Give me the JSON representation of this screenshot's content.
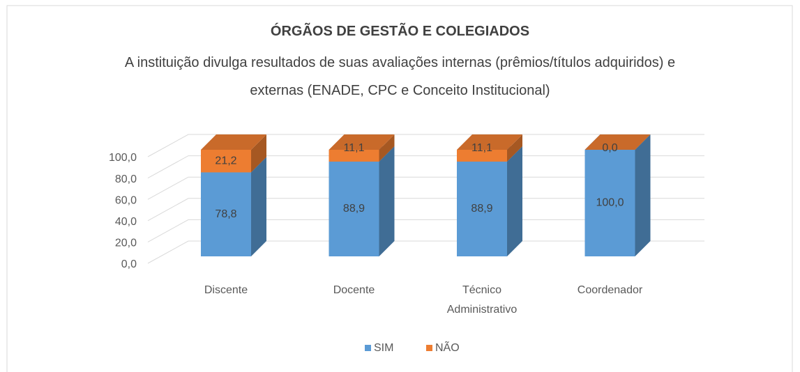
{
  "chart_data": {
    "type": "bar3d_stacked",
    "title": "ÓRGÃOS DE GESTÃO E COLEGIADOS",
    "subtitle": "A instituição divulga resultados de suas avaliações internas (prêmios/títulos adquiridos) e externas (ENADE, CPC e Conceito Institucional)",
    "categories": [
      "Discente",
      "Docente",
      "Técnico Administrativo",
      "Coordenador"
    ],
    "series": [
      {
        "name": "SIM",
        "color": "#5b9bd5",
        "values": [
          78.8,
          88.9,
          88.9,
          100.0
        ],
        "value_labels": [
          "78,8",
          "88,9",
          "88,9",
          "100,0"
        ]
      },
      {
        "name": "NÃO",
        "color": "#ed7d31",
        "values": [
          21.2,
          11.1,
          11.1,
          0.0
        ],
        "value_labels": [
          "21,2",
          "11,1",
          "11,1",
          "0,0"
        ]
      }
    ],
    "ylim": [
      0,
      100
    ],
    "yticks": [
      {
        "value": 0,
        "label": "0,0"
      },
      {
        "value": 20,
        "label": "20,0"
      },
      {
        "value": 40,
        "label": "40,0"
      },
      {
        "value": 60,
        "label": "60,0"
      },
      {
        "value": 80,
        "label": "80,0"
      },
      {
        "value": 100,
        "label": "100,0"
      }
    ],
    "grid": true,
    "legend": "bottom"
  }
}
